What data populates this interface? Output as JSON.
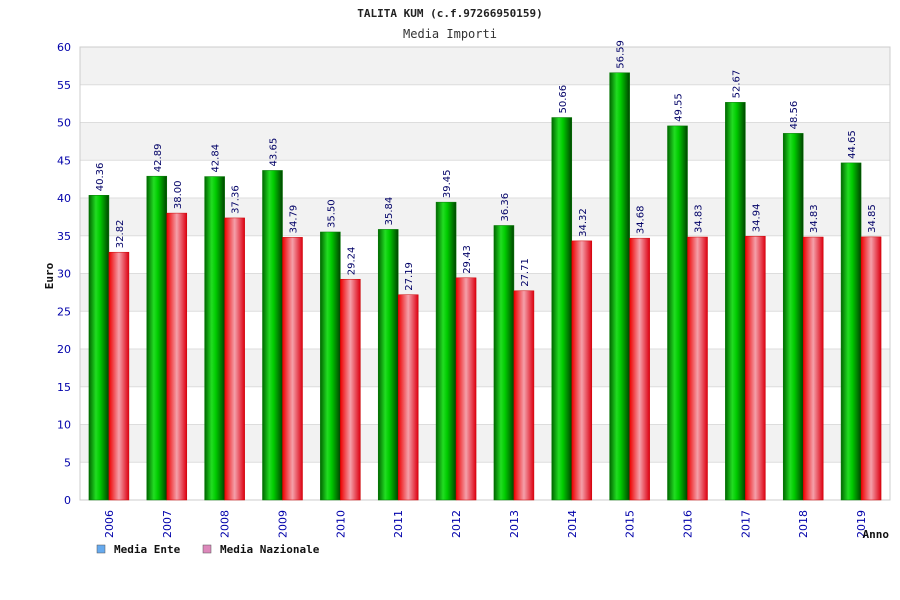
{
  "chart_data": {
    "type": "bar",
    "title": "TALITA KUM (c.f.97266950159)",
    "subtitle": "Media Importi",
    "ylabel": "Euro",
    "xlabel": "Anno",
    "ylim": [
      0,
      60
    ],
    "yticks": [
      0,
      5,
      10,
      15,
      20,
      25,
      30,
      35,
      40,
      45,
      50,
      55,
      60
    ],
    "grid": true,
    "legend_position": "bottom-left",
    "categories": [
      "2006",
      "2007",
      "2008",
      "2009",
      "2010",
      "2011",
      "2012",
      "2013",
      "2014",
      "2015",
      "2016",
      "2017",
      "2018",
      "2019"
    ],
    "series": [
      {
        "name": "Media Ente",
        "color": "#11cc11",
        "legend_color": "#66aaee",
        "values": [
          40.36,
          42.89,
          42.84,
          43.65,
          35.5,
          35.84,
          39.45,
          36.36,
          50.66,
          56.59,
          49.55,
          52.67,
          48.56,
          44.65
        ],
        "labels": [
          "40.36",
          "42.89",
          "42.84",
          "43.65",
          "35.50",
          "35.84",
          "39.45",
          "36.36",
          "50.66",
          "56.59",
          "49.55",
          "52.67",
          "48.56",
          "44.65"
        ]
      },
      {
        "name": "Media Nazionale",
        "color": "#ee2233",
        "legend_color": "#dd88bb",
        "values": [
          32.82,
          38.0,
          37.36,
          34.79,
          29.24,
          27.19,
          29.43,
          27.71,
          34.32,
          34.68,
          34.83,
          34.94,
          34.83,
          34.85
        ],
        "labels": [
          "32.82",
          "38.00",
          "37.36",
          "34.79",
          "29.24",
          "27.19",
          "29.43",
          "27.71",
          "34.32",
          "34.68",
          "34.83",
          "34.94",
          "34.83",
          "34.85"
        ]
      }
    ]
  }
}
